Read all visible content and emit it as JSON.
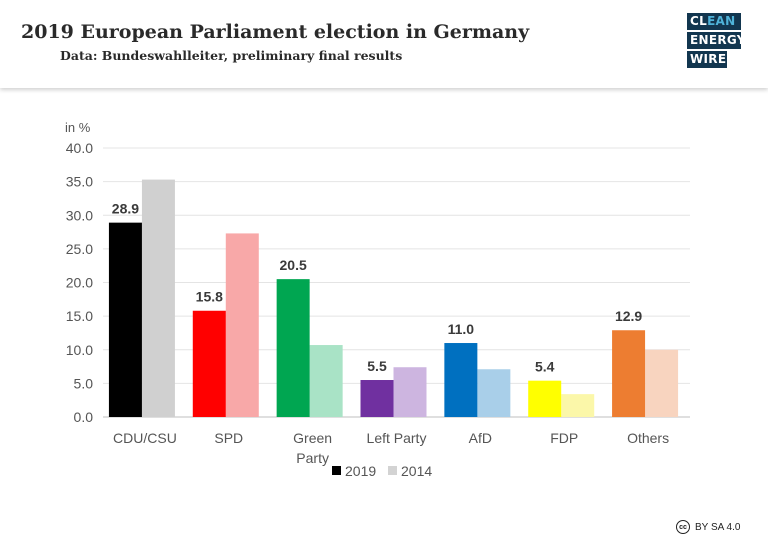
{
  "header": {
    "title": "2019 European Parliament election in Germany",
    "subtitle": "Data: Bundeswahlleiter, preliminary final results"
  },
  "logo": {
    "line1_dark": "CL",
    "line1_accent": "EAN",
    "line2": "ENERGY",
    "line3": "WIRE"
  },
  "license": {
    "icon": "cc",
    "text": "BY SA 4.0"
  },
  "chart_data": {
    "type": "bar",
    "unit_label": "in %",
    "ylim": [
      0,
      40
    ],
    "y_ticks": [
      "0.0",
      "5.0",
      "10.0",
      "15.0",
      "20.0",
      "25.0",
      "30.0",
      "35.0",
      "40.0"
    ],
    "categories": [
      "CDU/CSU",
      "SPD",
      "Green Party",
      "Left  Party",
      "AfD",
      "FDP",
      "Others"
    ],
    "category_lines": [
      [
        "CDU/CSU"
      ],
      [
        "SPD"
      ],
      [
        "Green",
        "Party"
      ],
      [
        "Left  Party"
      ],
      [
        "AfD"
      ],
      [
        "FDP"
      ],
      [
        "Others"
      ]
    ],
    "series": [
      {
        "name": "2019",
        "values": [
          28.9,
          15.8,
          20.5,
          5.5,
          11.0,
          5.4,
          12.9
        ],
        "labels": [
          "28.9",
          "15.8",
          "20.5",
          "5.5",
          "11.0",
          "5.4",
          "12.9"
        ]
      },
      {
        "name": "2014",
        "values": [
          35.3,
          27.3,
          10.7,
          7.4,
          7.1,
          3.4,
          10.0
        ]
      }
    ],
    "colors_2019": [
      "#000000",
      "#ff0000",
      "#00a651",
      "#7030a0",
      "#0070c0",
      "#ffff00",
      "#ed7d31"
    ],
    "colors_2014": [
      "#d0d0d0",
      "#f8a8a8",
      "#a9e3c6",
      "#cdb5e0",
      "#a9cfe9",
      "#fbf7a9",
      "#f8d4bf"
    ],
    "legend": [
      {
        "name": "2019",
        "color": "#000000"
      },
      {
        "name": "2014",
        "color": "#d3d3d3"
      }
    ],
    "legend_position": "bottom-center",
    "grid": true
  }
}
